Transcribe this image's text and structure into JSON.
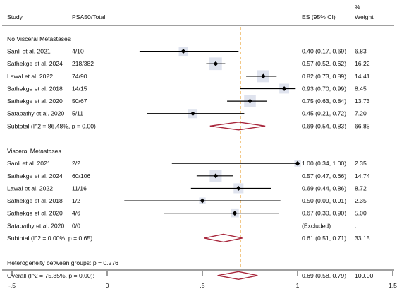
{
  "header": {
    "study": "Study",
    "count": "PSA50/Total",
    "es": "ES (95% CI)",
    "weight_pct": "%",
    "weight": "Weight"
  },
  "chart_data": {
    "type": "forest",
    "reference_line": 0.7,
    "xlim": [
      -0.5,
      1.5
    ],
    "ticks": [
      {
        "value": -0.5,
        "label": "-.5"
      },
      {
        "value": 0,
        "label": "0"
      },
      {
        "value": 0.5,
        "label": ".5"
      },
      {
        "value": 1,
        "label": "1"
      },
      {
        "value": 1.5,
        "label": "1.5"
      }
    ],
    "rows": [
      {
        "kind": "group",
        "label": "No Visceral Metastases"
      },
      {
        "kind": "study",
        "study": "Sanli et al. 2021",
        "count": "4/10",
        "es": 0.4,
        "lo": 0.17,
        "hi": 0.69,
        "es_text": "0.40 (0.17, 0.69)",
        "weight": "6.83"
      },
      {
        "kind": "study",
        "study": "Sathekge et al. 2024",
        "count": "218/382",
        "es": 0.57,
        "lo": 0.52,
        "hi": 0.62,
        "es_text": "0.57 (0.52, 0.62)",
        "weight": "16.22"
      },
      {
        "kind": "study",
        "study": "Lawal et al. 2022",
        "count": "74/90",
        "es": 0.82,
        "lo": 0.73,
        "hi": 0.89,
        "es_text": "0.82 (0.73, 0.89)",
        "weight": "14.41"
      },
      {
        "kind": "study",
        "study": "Sathekge et al. 2018",
        "count": "14/15",
        "es": 0.93,
        "lo": 0.7,
        "hi": 0.99,
        "es_text": "0.93 (0.70, 0.99)",
        "weight": "8.45"
      },
      {
        "kind": "study",
        "study": "Sathekge et al. 2020",
        "count": "50/67",
        "es": 0.75,
        "lo": 0.63,
        "hi": 0.84,
        "es_text": "0.75 (0.63, 0.84)",
        "weight": "13.73"
      },
      {
        "kind": "study",
        "study": "Satapathy et al. 2020",
        "count": "5/11",
        "es": 0.45,
        "lo": 0.21,
        "hi": 0.72,
        "es_text": "0.45 (0.21, 0.72)",
        "weight": "7.20"
      },
      {
        "kind": "subtotal",
        "label": "Subtotal  (I^2 = 86.48%, p = 0.00)",
        "es": 0.69,
        "lo": 0.54,
        "hi": 0.83,
        "es_text": "0.69 (0.54, 0.83)",
        "weight": "66.85"
      },
      {
        "kind": "blank"
      },
      {
        "kind": "group",
        "label": "Visceral Metastases"
      },
      {
        "kind": "study",
        "study": "Sanli et al. 2021",
        "count": "2/2",
        "es": 1.0,
        "lo": 0.34,
        "hi": 1.0,
        "es_text": "1.00 (0.34, 1.00)",
        "weight": "2.35"
      },
      {
        "kind": "study",
        "study": "Sathekge et al. 2024",
        "count": "60/106",
        "es": 0.57,
        "lo": 0.47,
        "hi": 0.66,
        "es_text": "0.57 (0.47, 0.66)",
        "weight": "14.74"
      },
      {
        "kind": "study",
        "study": "Lawal et al. 2022",
        "count": "11/16",
        "es": 0.69,
        "lo": 0.44,
        "hi": 0.86,
        "es_text": "0.69 (0.44, 0.86)",
        "weight": "8.72"
      },
      {
        "kind": "study",
        "study": "Sathekge et al. 2018",
        "count": "1/2",
        "es": 0.5,
        "lo": 0.09,
        "hi": 0.91,
        "es_text": "0.50 (0.09, 0.91)",
        "weight": "2.35"
      },
      {
        "kind": "study",
        "study": "Sathekge et al. 2020",
        "count": "4/6",
        "es": 0.67,
        "lo": 0.3,
        "hi": 0.9,
        "es_text": "0.67 (0.30, 0.90)",
        "weight": "5.00"
      },
      {
        "kind": "excluded",
        "study": "Satapathy et al. 2020",
        "count": "0/0",
        "es_text": "(Excluded)",
        "weight": "."
      },
      {
        "kind": "subtotal",
        "label": "Subtotal  (I^2 = 0.00%, p = 0.65)",
        "es": 0.61,
        "lo": 0.51,
        "hi": 0.71,
        "es_text": "0.61 (0.51, 0.71)",
        "weight": "33.15"
      },
      {
        "kind": "blank"
      },
      {
        "kind": "note",
        "label": "Heterogeneity between groups: p = 0.276"
      },
      {
        "kind": "overall",
        "label": "Overall  (I^2 = 75.35%, p = 0.00);",
        "es": 0.69,
        "lo": 0.58,
        "hi": 0.79,
        "es_text": "0.69 (0.58, 0.79)",
        "weight": "100.00"
      }
    ],
    "colors": {
      "diamond": "#a8263b",
      "reference": "#e8a33a",
      "weight_box": "#dfe3ee",
      "line": "#000000"
    }
  }
}
